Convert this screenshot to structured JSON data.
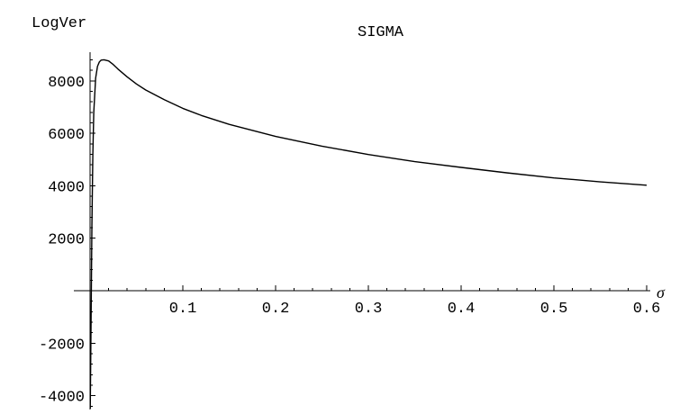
{
  "chart_data": {
    "type": "line",
    "title": "SIGMA",
    "ylabel": "LogVer",
    "xlabel": "σ",
    "xlim": [
      -0.01,
      0.6
    ],
    "ylim": [
      -4500,
      9200
    ],
    "xticks": [
      0.1,
      0.2,
      0.3,
      0.4,
      0.5,
      0.6
    ],
    "xtick_labels": [
      "0.1",
      "0.2",
      "0.3",
      "0.4",
      "0.5",
      "0.6"
    ],
    "xtick_minor_step": 0.02,
    "yticks": [
      -4000,
      -2000,
      2000,
      4000,
      6000,
      8000
    ],
    "ytick_labels": [
      "-4000",
      "-2000",
      "2000",
      "4000",
      "6000",
      "8000"
    ],
    "ytick_minor_step": 400,
    "grid": false,
    "series": [
      {
        "x": [
          0.0002,
          0.001,
          0.002,
          0.003,
          0.004,
          0.006,
          0.008,
          0.01,
          0.012,
          0.015,
          0.02,
          0.025,
          0.03,
          0.04,
          0.05,
          0.06,
          0.08,
          0.1,
          0.12,
          0.15,
          0.2,
          0.25,
          0.3,
          0.35,
          0.4,
          0.45,
          0.5,
          0.55,
          0.6
        ],
        "values": [
          -4500,
          -1500,
          2500,
          5200,
          6800,
          8100,
          8550,
          8720,
          8790,
          8800,
          8760,
          8620,
          8450,
          8150,
          7880,
          7650,
          7280,
          6950,
          6680,
          6340,
          5880,
          5510,
          5190,
          4920,
          4700,
          4490,
          4300,
          4150,
          4020
        ]
      }
    ]
  }
}
